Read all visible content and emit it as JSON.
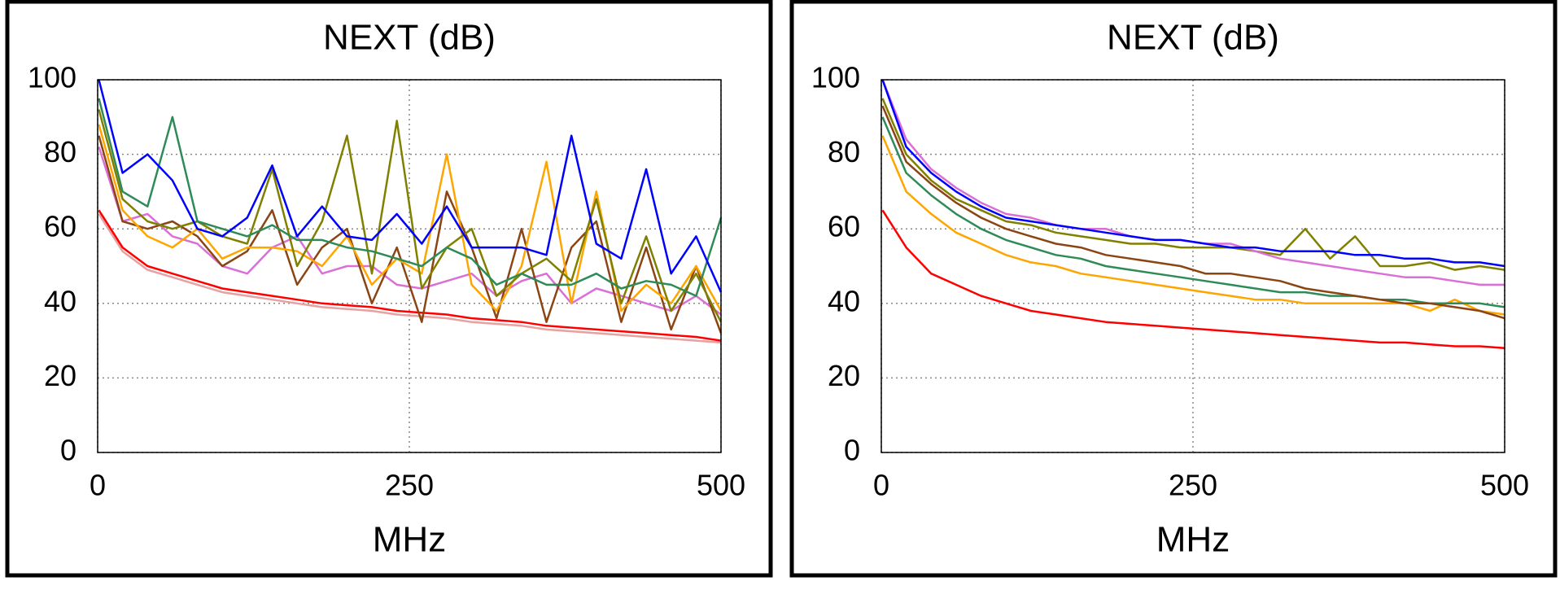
{
  "chart_data": [
    {
      "type": "line",
      "title": "NEXT (dB)",
      "x_label": "MHz",
      "x": [
        1,
        20,
        40,
        60,
        80,
        100,
        120,
        140,
        160,
        180,
        200,
        220,
        240,
        260,
        280,
        300,
        320,
        340,
        360,
        380,
        400,
        420,
        440,
        460,
        480,
        500
      ],
      "xlim": [
        0,
        500
      ],
      "ylim": [
        0,
        100
      ],
      "xticks": [
        0,
        250,
        500
      ],
      "yticks": [
        0,
        20,
        40,
        60,
        80,
        100
      ],
      "grid": true,
      "series": [
        {
          "color": "#e8a0a0",
          "values": [
            64,
            54,
            49,
            47,
            45,
            43,
            42,
            41,
            40,
            39,
            38.5,
            38,
            37,
            36.5,
            36,
            35,
            34.5,
            34,
            33,
            32.5,
            32,
            31.5,
            31,
            30.5,
            30,
            29.5
          ]
        },
        {
          "color": "#ff0000",
          "values": [
            65,
            55,
            50,
            48,
            46,
            44,
            43,
            42,
            41,
            40,
            39.5,
            39,
            38,
            37.5,
            37,
            36,
            35.5,
            35,
            34,
            33.5,
            33,
            32.5,
            32,
            31.5,
            31,
            30
          ]
        },
        {
          "color": "#da70d6",
          "values": [
            82,
            62,
            64,
            58,
            56,
            50,
            48,
            55,
            58,
            48,
            50,
            50,
            45,
            44,
            46,
            48,
            42,
            46,
            48,
            40,
            44,
            42,
            40,
            38,
            42,
            37
          ]
        },
        {
          "color": "#8b4513",
          "values": [
            85,
            62,
            60,
            62,
            58,
            50,
            54,
            65,
            45,
            55,
            60,
            40,
            55,
            35,
            70,
            55,
            36,
            60,
            35,
            55,
            62,
            35,
            55,
            33,
            50,
            32
          ]
        },
        {
          "color": "#ffa500",
          "values": [
            88,
            65,
            58,
            55,
            60,
            52,
            55,
            55,
            54,
            50,
            58,
            45,
            52,
            48,
            80,
            45,
            38,
            50,
            78,
            40,
            70,
            38,
            45,
            40,
            50,
            38
          ]
        },
        {
          "color": "#808000",
          "values": [
            92,
            68,
            62,
            60,
            62,
            58,
            56,
            76,
            50,
            62,
            85,
            48,
            89,
            44,
            55,
            60,
            42,
            48,
            52,
            46,
            68,
            40,
            58,
            38,
            48,
            35
          ]
        },
        {
          "color": "#2e8b57",
          "values": [
            95,
            70,
            66,
            90,
            62,
            60,
            58,
            61,
            57,
            57,
            55,
            54,
            52,
            50,
            55,
            52,
            45,
            48,
            45,
            45,
            48,
            44,
            46,
            45,
            42,
            63
          ]
        },
        {
          "color": "#0000ff",
          "values": [
            100,
            75,
            80,
            73,
            60,
            58,
            63,
            77,
            58,
            66,
            58,
            57,
            64,
            56,
            66,
            55,
            55,
            55,
            53,
            85,
            56,
            52,
            76,
            48,
            58,
            43
          ]
        }
      ]
    },
    {
      "type": "line",
      "title": "NEXT (dB)",
      "x_label": "MHz",
      "x": [
        1,
        20,
        40,
        60,
        80,
        100,
        120,
        140,
        160,
        180,
        200,
        220,
        240,
        260,
        280,
        300,
        320,
        340,
        360,
        380,
        400,
        420,
        440,
        460,
        480,
        500
      ],
      "xlim": [
        0,
        500
      ],
      "ylim": [
        0,
        100
      ],
      "xticks": [
        0,
        250,
        500
      ],
      "yticks": [
        0,
        20,
        40,
        60,
        80,
        100
      ],
      "grid": true,
      "series": [
        {
          "color": "#ff0000",
          "values": [
            65,
            55,
            48,
            45,
            42,
            40,
            38,
            37,
            36,
            35,
            34.5,
            34,
            33.5,
            33,
            32.5,
            32,
            31.5,
            31,
            30.5,
            30,
            29.5,
            29.5,
            29,
            28.5,
            28.5,
            28
          ]
        },
        {
          "color": "#ffa500",
          "values": [
            85,
            70,
            64,
            59,
            56,
            53,
            51,
            50,
            48,
            47,
            46,
            45,
            44,
            43,
            42,
            41,
            41,
            40,
            40,
            40,
            40,
            40,
            38,
            41,
            38,
            37
          ]
        },
        {
          "color": "#2e8b57",
          "values": [
            90,
            75,
            69,
            64,
            60,
            57,
            55,
            53,
            52,
            50,
            49,
            48,
            47,
            46,
            45,
            44,
            43,
            43,
            42,
            42,
            41,
            41,
            40,
            40,
            40,
            39
          ]
        },
        {
          "color": "#8b4513",
          "values": [
            93,
            78,
            72,
            67,
            63,
            60,
            58,
            56,
            55,
            53,
            52,
            51,
            50,
            48,
            48,
            47,
            46,
            44,
            43,
            42,
            41,
            40,
            40,
            39,
            38,
            36
          ]
        },
        {
          "color": "#808000",
          "values": [
            95,
            80,
            73,
            68,
            65,
            62,
            61,
            59,
            58,
            57,
            56,
            56,
            55,
            55,
            55,
            54,
            53,
            60,
            52,
            58,
            50,
            50,
            51,
            49,
            50,
            49
          ]
        },
        {
          "color": "#da70d6",
          "values": [
            100,
            84,
            76,
            71,
            67,
            64,
            63,
            61,
            60,
            60,
            58,
            57,
            57,
            56,
            56,
            54,
            52,
            51,
            50,
            49,
            48,
            47,
            47,
            46,
            45,
            45
          ]
        },
        {
          "color": "#0000ff",
          "values": [
            100,
            82,
            75,
            70,
            66,
            63,
            62,
            61,
            60,
            59,
            58,
            57,
            57,
            56,
            55,
            55,
            54,
            54,
            54,
            53,
            53,
            52,
            52,
            51,
            51,
            50
          ]
        }
      ]
    }
  ]
}
